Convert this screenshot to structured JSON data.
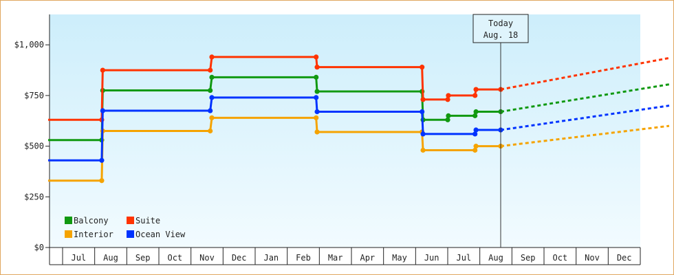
{
  "chart_data": {
    "type": "line",
    "title": "",
    "xlabel": "",
    "ylabel": "",
    "ylim": [
      0,
      1150
    ],
    "grid": false,
    "legend_position": "bottom-left",
    "y_ticks": [
      {
        "value": 0,
        "label": "$0"
      },
      {
        "value": 250,
        "label": "$250"
      },
      {
        "value": 500,
        "label": "$500"
      },
      {
        "value": 750,
        "label": "$750"
      },
      {
        "value": 1000,
        "label": "$1,000"
      }
    ],
    "x_months": [
      "Jul",
      "Aug",
      "Sep",
      "Oct",
      "Nov",
      "Dec",
      "Jan",
      "Feb",
      "Mar",
      "Apr",
      "May",
      "Jun",
      "Jul",
      "Aug",
      "Sep",
      "Oct",
      "Nov",
      "Dec"
    ],
    "today": {
      "line1": "Today",
      "line2": "Aug. 18",
      "x": 13.65
    },
    "series": [
      {
        "name": "Balcony",
        "color": "#119911",
        "points": [
          [
            -0.45,
            530
          ],
          [
            1.22,
            530
          ],
          [
            1.25,
            775
          ],
          [
            4.6,
            775
          ],
          [
            4.65,
            840
          ],
          [
            7.9,
            840
          ],
          [
            7.93,
            770
          ],
          [
            11.2,
            770
          ],
          [
            11.23,
            630
          ],
          [
            12.0,
            630
          ],
          [
            12.02,
            650
          ],
          [
            12.85,
            650
          ],
          [
            12.88,
            670
          ],
          [
            13.65,
            670
          ]
        ],
        "projection": [
          [
            13.65,
            670
          ],
          [
            18.9,
            805
          ]
        ]
      },
      {
        "name": "Suite",
        "color": "#ff3300",
        "points": [
          [
            -0.45,
            630
          ],
          [
            1.22,
            630
          ],
          [
            1.25,
            875
          ],
          [
            4.6,
            875
          ],
          [
            4.65,
            940
          ],
          [
            7.9,
            940
          ],
          [
            7.93,
            890
          ],
          [
            11.2,
            890
          ],
          [
            11.23,
            730
          ],
          [
            12.0,
            730
          ],
          [
            12.02,
            750
          ],
          [
            12.85,
            750
          ],
          [
            12.88,
            780
          ],
          [
            13.65,
            780
          ]
        ],
        "projection": [
          [
            13.65,
            780
          ],
          [
            18.9,
            935
          ]
        ]
      },
      {
        "name": "Interior",
        "color": "#f5a300",
        "points": [
          [
            -0.45,
            330
          ],
          [
            1.22,
            330
          ],
          [
            1.25,
            575
          ],
          [
            4.6,
            575
          ],
          [
            4.65,
            640
          ],
          [
            7.9,
            640
          ],
          [
            7.93,
            570
          ],
          [
            11.2,
            570
          ],
          [
            11.23,
            480
          ],
          [
            12.85,
            480
          ],
          [
            12.88,
            500
          ],
          [
            13.65,
            500
          ]
        ],
        "projection": [
          [
            13.65,
            500
          ],
          [
            18.9,
            600
          ]
        ]
      },
      {
        "name": "Ocean View",
        "color": "#0033ff",
        "points": [
          [
            -0.45,
            430
          ],
          [
            1.22,
            430
          ],
          [
            1.25,
            675
          ],
          [
            4.6,
            675
          ],
          [
            4.65,
            740
          ],
          [
            7.9,
            740
          ],
          [
            7.93,
            670
          ],
          [
            11.2,
            670
          ],
          [
            11.23,
            560
          ],
          [
            12.85,
            560
          ],
          [
            12.88,
            580
          ],
          [
            13.65,
            580
          ]
        ],
        "projection": [
          [
            13.65,
            580
          ],
          [
            18.9,
            700
          ]
        ]
      }
    ],
    "legend_order": [
      "Balcony",
      "Suite",
      "Interior",
      "Ocean View"
    ]
  }
}
